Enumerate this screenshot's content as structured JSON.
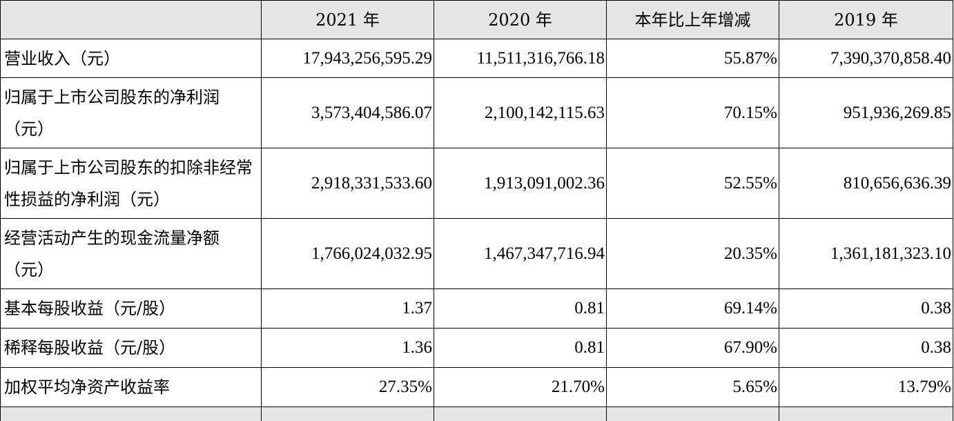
{
  "table": {
    "headers": [
      "",
      "2021 年",
      "2020 年",
      "本年比上年增减",
      "2019 年"
    ],
    "rows": [
      {
        "label": "营业收入（元）",
        "values": [
          "17,943,256,595.29",
          "11,511,316,766.18",
          "55.87%",
          "7,390,370,858.40"
        ]
      },
      {
        "label": "归属于上市公司股东的净利润（元）",
        "values": [
          "3,573,404,586.07",
          "2,100,142,115.63",
          "70.15%",
          "951,936,269.85"
        ]
      },
      {
        "label": "归属于上市公司股东的扣除非经常性损益的净利润（元）",
        "values": [
          "2,918,331,533.60",
          "1,913,091,002.36",
          "52.55%",
          "810,656,636.39"
        ]
      },
      {
        "label": "经营活动产生的现金流量净额（元）",
        "values": [
          "1,766,024,032.95",
          "1,467,347,716.94",
          "20.35%",
          "1,361,181,323.10"
        ]
      },
      {
        "label": "基本每股收益（元/股）",
        "values": [
          "1.37",
          "0.81",
          "69.14%",
          "0.38"
        ]
      },
      {
        "label": "稀释每股收益（元/股）",
        "values": [
          "1.36",
          "0.81",
          "67.90%",
          "0.38"
        ]
      },
      {
        "label": "加权平均净资产收益率",
        "values": [
          "27.35%",
          "21.70%",
          "5.65%",
          "13.79%"
        ]
      }
    ]
  }
}
